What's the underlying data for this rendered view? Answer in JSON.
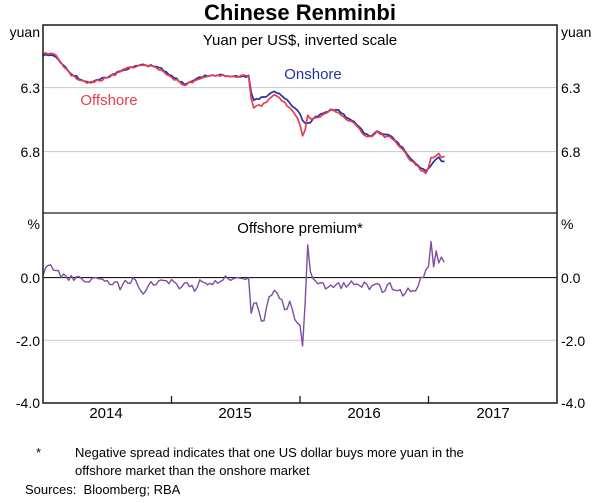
{
  "title": "Chinese Renminbi",
  "panels": {
    "top": {
      "subtitle": "Yuan per US$, inverted scale",
      "unit_left": "yuan",
      "unit_right": "yuan",
      "onshore_label": "Onshore",
      "offshore_label": "Offshore",
      "yticks": [
        "6.3",
        "6.8"
      ]
    },
    "bottom": {
      "subtitle": "Offshore premium*",
      "unit_left": "%",
      "unit_right": "%",
      "yticks": [
        "0.0",
        "-2.0",
        "-4.0"
      ]
    }
  },
  "x_axis": {
    "year_labels": [
      "2014",
      "2015",
      "2016",
      "2017"
    ]
  },
  "footnote": {
    "marker": "*",
    "line1": "Negative spread indicates that one US dollar buys more yuan in the",
    "line2": "offshore market than the onshore market",
    "sources": "Sources:  Bloomberg; RBA"
  },
  "colors": {
    "onshore": "#2433A0",
    "offshore": "#E63E52",
    "premium": "#7C4FA1",
    "gridline": "#C9C9C9",
    "frame": "#1A1A1A"
  },
  "chart_data": [
    {
      "type": "line",
      "panel": "top",
      "title": "Yuan per US$, inverted scale",
      "xlim": [
        2014,
        2018
      ],
      "ylim_top_to_bottom": [
        5.81,
        7.28
      ],
      "ytick_values": [
        6.3,
        6.8
      ],
      "grid": true,
      "note": "inverted scale: higher yuan-per-dollar plotted lower",
      "series": [
        {
          "name": "Onshore",
          "color": "onshore",
          "noise": 0.008,
          "points": [
            [
              2014.0,
              6.05
            ],
            [
              2014.05,
              6.04
            ],
            [
              2014.1,
              6.06
            ],
            [
              2014.15,
              6.12
            ],
            [
              2014.22,
              6.19
            ],
            [
              2014.3,
              6.24
            ],
            [
              2014.37,
              6.26
            ],
            [
              2014.45,
              6.23
            ],
            [
              2014.55,
              6.2
            ],
            [
              2014.62,
              6.16
            ],
            [
              2014.7,
              6.14
            ],
            [
              2014.78,
              6.12
            ],
            [
              2014.85,
              6.13
            ],
            [
              2014.92,
              6.15
            ],
            [
              2014.97,
              6.19
            ],
            [
              2015.05,
              6.24
            ],
            [
              2015.1,
              6.27
            ],
            [
              2015.17,
              6.24
            ],
            [
              2015.25,
              6.21
            ],
            [
              2015.35,
              6.2
            ],
            [
              2015.45,
              6.21
            ],
            [
              2015.55,
              6.21
            ],
            [
              2015.608,
              6.21
            ],
            [
              2015.62,
              6.33
            ],
            [
              2015.64,
              6.4
            ],
            [
              2015.7,
              6.38
            ],
            [
              2015.75,
              6.36
            ],
            [
              2015.8,
              6.33
            ],
            [
              2015.85,
              6.36
            ],
            [
              2015.9,
              6.4
            ],
            [
              2015.95,
              6.45
            ],
            [
              2015.99,
              6.49
            ],
            [
              2016.03,
              6.57
            ],
            [
              2016.08,
              6.57
            ],
            [
              2016.13,
              6.52
            ],
            [
              2016.18,
              6.5
            ],
            [
              2016.25,
              6.47
            ],
            [
              2016.3,
              6.48
            ],
            [
              2016.37,
              6.54
            ],
            [
              2016.45,
              6.59
            ],
            [
              2016.5,
              6.66
            ],
            [
              2016.55,
              6.68
            ],
            [
              2016.6,
              6.64
            ],
            [
              2016.65,
              6.67
            ],
            [
              2016.7,
              6.67
            ],
            [
              2016.75,
              6.72
            ],
            [
              2016.8,
              6.77
            ],
            [
              2016.85,
              6.85
            ],
            [
              2016.9,
              6.89
            ],
            [
              2016.95,
              6.94
            ],
            [
              2016.99,
              6.95
            ],
            [
              2017.02,
              6.91
            ],
            [
              2017.05,
              6.87
            ],
            [
              2017.08,
              6.85
            ],
            [
              2017.1,
              6.88
            ],
            [
              2017.12,
              6.87
            ]
          ]
        },
        {
          "name": "Offshore",
          "color": "offshore",
          "noise": 0.009,
          "points": [
            [
              2014.0,
              6.04
            ],
            [
              2014.05,
              6.03
            ],
            [
              2014.1,
              6.05
            ],
            [
              2014.15,
              6.12
            ],
            [
              2014.22,
              6.2
            ],
            [
              2014.3,
              6.25
            ],
            [
              2014.37,
              6.26
            ],
            [
              2014.45,
              6.24
            ],
            [
              2014.55,
              6.2
            ],
            [
              2014.62,
              6.16
            ],
            [
              2014.7,
              6.14
            ],
            [
              2014.78,
              6.13
            ],
            [
              2014.85,
              6.13
            ],
            [
              2014.92,
              6.16
            ],
            [
              2014.97,
              6.2
            ],
            [
              2015.05,
              6.25
            ],
            [
              2015.1,
              6.28
            ],
            [
              2015.17,
              6.25
            ],
            [
              2015.25,
              6.21
            ],
            [
              2015.35,
              6.2
            ],
            [
              2015.45,
              6.21
            ],
            [
              2015.55,
              6.21
            ],
            [
              2015.608,
              6.21
            ],
            [
              2015.62,
              6.38
            ],
            [
              2015.64,
              6.45
            ],
            [
              2015.7,
              6.44
            ],
            [
              2015.75,
              6.4
            ],
            [
              2015.8,
              6.35
            ],
            [
              2015.85,
              6.39
            ],
            [
              2015.9,
              6.44
            ],
            [
              2015.95,
              6.49
            ],
            [
              2015.99,
              6.55
            ],
            [
              2016.02,
              6.68
            ],
            [
              2016.05,
              6.6
            ],
            [
              2016.06,
              6.51
            ],
            [
              2016.08,
              6.55
            ],
            [
              2016.13,
              6.53
            ],
            [
              2016.18,
              6.51
            ],
            [
              2016.25,
              6.47
            ],
            [
              2016.3,
              6.49
            ],
            [
              2016.37,
              6.55
            ],
            [
              2016.45,
              6.6
            ],
            [
              2016.5,
              6.67
            ],
            [
              2016.55,
              6.69
            ],
            [
              2016.6,
              6.65
            ],
            [
              2016.65,
              6.68
            ],
            [
              2016.7,
              6.68
            ],
            [
              2016.75,
              6.73
            ],
            [
              2016.8,
              6.78
            ],
            [
              2016.85,
              6.86
            ],
            [
              2016.9,
              6.9
            ],
            [
              2016.95,
              6.95
            ],
            [
              2016.99,
              6.97
            ],
            [
              2017.02,
              6.85
            ],
            [
              2017.05,
              6.84
            ],
            [
              2017.08,
              6.82
            ],
            [
              2017.1,
              6.85
            ],
            [
              2017.12,
              6.84
            ]
          ]
        }
      ]
    },
    {
      "type": "line",
      "panel": "bottom",
      "title": "Offshore premium*",
      "xlim": [
        2014,
        2018
      ],
      "ylim_top_to_bottom": [
        2.06,
        -4.0
      ],
      "ytick_values": [
        0.0,
        -2.0,
        -4.0
      ],
      "grid": true,
      "series": [
        {
          "name": "Offshore premium",
          "color": "premium",
          "noise": 0.11,
          "points": [
            [
              2014.0,
              0.15
            ],
            [
              2014.03,
              0.3
            ],
            [
              2014.06,
              0.35
            ],
            [
              2014.1,
              0.25
            ],
            [
              2014.14,
              0.1
            ],
            [
              2014.18,
              0.0
            ],
            [
              2014.25,
              -0.05
            ],
            [
              2014.32,
              -0.1
            ],
            [
              2014.4,
              -0.05
            ],
            [
              2014.48,
              -0.1
            ],
            [
              2014.55,
              -0.15
            ],
            [
              2014.6,
              -0.3
            ],
            [
              2014.65,
              -0.15
            ],
            [
              2014.72,
              -0.1
            ],
            [
              2014.78,
              -0.45
            ],
            [
              2014.82,
              -0.2
            ],
            [
              2014.88,
              -0.15
            ],
            [
              2014.95,
              -0.1
            ],
            [
              2015.02,
              -0.15
            ],
            [
              2015.08,
              -0.3
            ],
            [
              2015.12,
              -0.15
            ],
            [
              2015.18,
              -0.35
            ],
            [
              2015.22,
              -0.15
            ],
            [
              2015.28,
              -0.2
            ],
            [
              2015.35,
              -0.1
            ],
            [
              2015.42,
              -0.05
            ],
            [
              2015.48,
              -0.1
            ],
            [
              2015.55,
              -0.05
            ],
            [
              2015.6,
              -0.1
            ],
            [
              2015.62,
              -1.1
            ],
            [
              2015.64,
              -0.75
            ],
            [
              2015.67,
              -0.9
            ],
            [
              2015.7,
              -1.5
            ],
            [
              2015.73,
              -1.2
            ],
            [
              2015.76,
              -0.7
            ],
            [
              2015.8,
              -0.45
            ],
            [
              2015.84,
              -0.6
            ],
            [
              2015.88,
              -1.0
            ],
            [
              2015.92,
              -0.8
            ],
            [
              2015.96,
              -1.3
            ],
            [
              2016.0,
              -1.6
            ],
            [
              2016.02,
              -2.1
            ],
            [
              2016.04,
              -0.9
            ],
            [
              2016.06,
              1.0
            ],
            [
              2016.08,
              0.3
            ],
            [
              2016.1,
              -0.1
            ],
            [
              2016.14,
              -0.3
            ],
            [
              2016.18,
              -0.15
            ],
            [
              2016.22,
              -0.4
            ],
            [
              2016.27,
              -0.2
            ],
            [
              2016.32,
              -0.3
            ],
            [
              2016.38,
              -0.15
            ],
            [
              2016.44,
              -0.3
            ],
            [
              2016.5,
              -0.2
            ],
            [
              2016.55,
              -0.35
            ],
            [
              2016.6,
              -0.2
            ],
            [
              2016.65,
              -0.45
            ],
            [
              2016.7,
              -0.25
            ],
            [
              2016.75,
              -0.35
            ],
            [
              2016.8,
              -0.5
            ],
            [
              2016.85,
              -0.3
            ],
            [
              2016.88,
              -0.45
            ],
            [
              2016.92,
              -0.2
            ],
            [
              2016.96,
              0.1
            ],
            [
              2017.0,
              0.4
            ],
            [
              2017.02,
              1.2
            ],
            [
              2017.04,
              0.3
            ],
            [
              2017.06,
              0.8
            ],
            [
              2017.08,
              0.4
            ],
            [
              2017.1,
              0.7
            ],
            [
              2017.12,
              0.5
            ]
          ]
        }
      ]
    }
  ]
}
